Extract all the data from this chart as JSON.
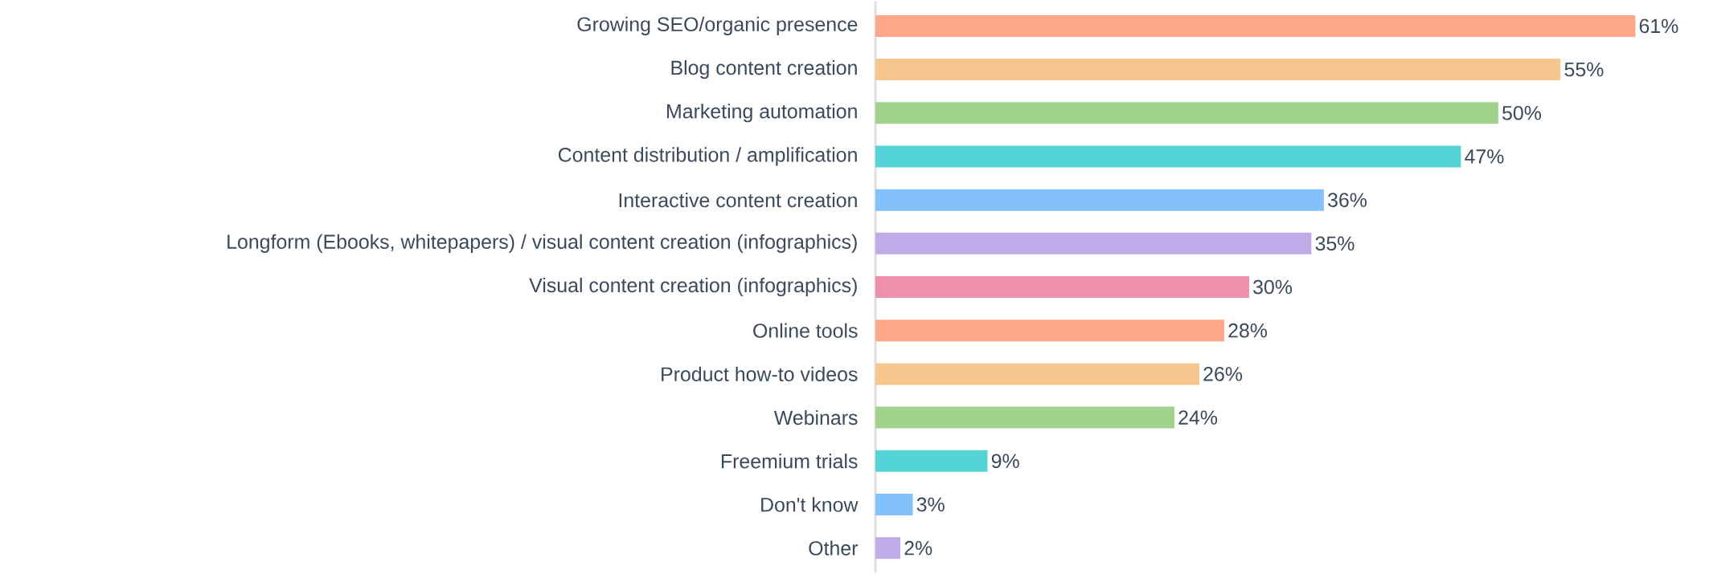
{
  "chart_data": {
    "type": "bar",
    "orientation": "horizontal",
    "categories": [
      "Growing SEO/organic presence",
      "Blog content creation",
      "Marketing automation",
      "Content distribution / amplification",
      "Interactive content creation",
      "Longform (Ebooks, whitepapers) / visual content creation (infographics)",
      "Visual content creation (infographics)",
      "Online tools",
      "Product how-to videos",
      "Webinars",
      "Freemium trials",
      "Don't know",
      "Other"
    ],
    "values": [
      61,
      55,
      50,
      47,
      36,
      35,
      30,
      28,
      26,
      24,
      9,
      3,
      2
    ],
    "value_labels": [
      "61%",
      "55%",
      "50%",
      "47%",
      "36%",
      "35%",
      "30%",
      "28%",
      "26%",
      "24%",
      "9%",
      "3%",
      "2%"
    ],
    "colors": [
      "#fda78a",
      "#f5c78f",
      "#a0d28c",
      "#55d4d8",
      "#83c1fa",
      "#c0abe8",
      "#ec90ac",
      "#fda78a",
      "#f5c78f",
      "#a0d28c",
      "#55d4d8",
      "#83c1fa",
      "#c0abe8"
    ]
  }
}
